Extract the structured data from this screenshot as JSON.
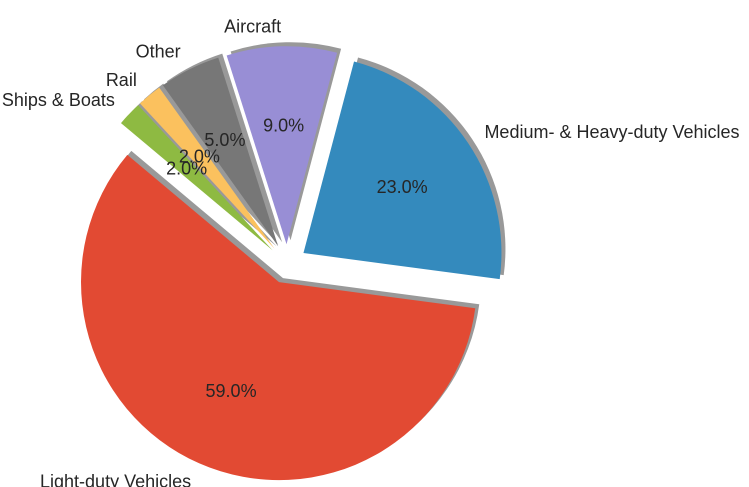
{
  "chart_data": {
    "type": "pie",
    "categories": [
      "Light-duty Vehicles",
      "Medium- & Heavy-duty Vehicles",
      "Aircraft",
      "Other",
      "Rail",
      "Ships & Boats"
    ],
    "values": [
      59.0,
      23.0,
      9.0,
      5.0,
      2.0,
      2.0
    ],
    "value_labels": [
      "59.0%",
      "23.0%",
      "9.0%",
      "5.0%",
      "2.0%",
      "2.0%"
    ],
    "colors": [
      "#E24A33",
      "#348ABD",
      "#988ED5",
      "#777777",
      "#FBC15E",
      "#8EBA42"
    ],
    "exploded": [
      true,
      true,
      true,
      true,
      true,
      true
    ],
    "shadow": true,
    "title": "",
    "legend": "none"
  }
}
